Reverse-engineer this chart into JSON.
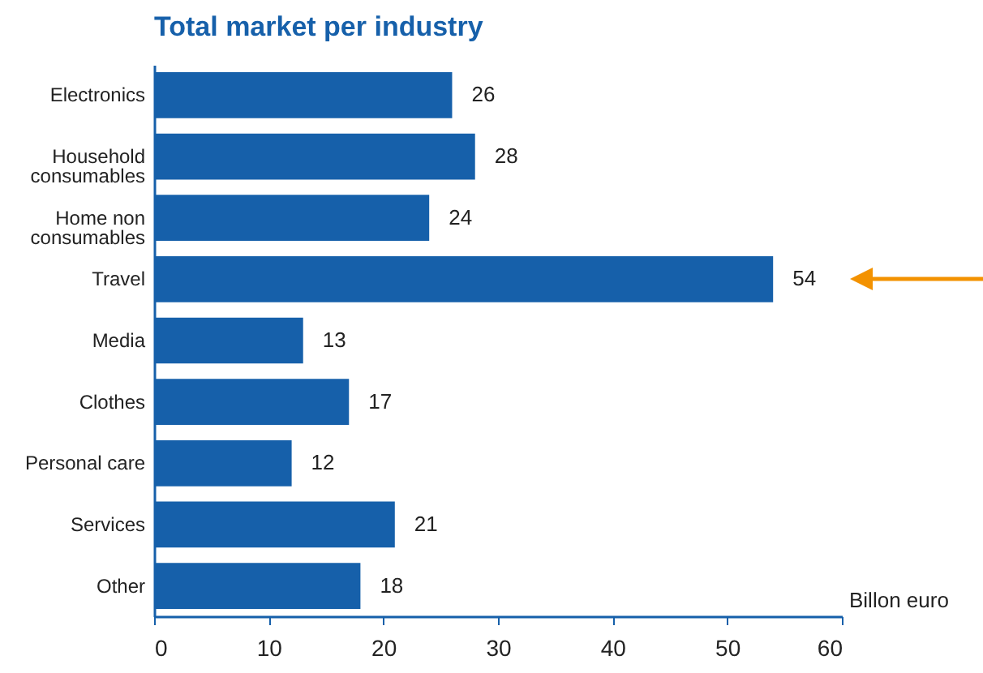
{
  "chart_data": {
    "type": "bar",
    "orientation": "horizontal",
    "title": "Total market per industry",
    "xlabel": "Billon euro",
    "categories": [
      "Electronics",
      "Household\nconsumables",
      "Home non\nconsumables",
      "Travel",
      "Media",
      "Clothes",
      "Personal care",
      "Services",
      "Other"
    ],
    "values": [
      26,
      28,
      24,
      54,
      13,
      17,
      12,
      21,
      18
    ],
    "color": "#1660aa",
    "xlim": [
      0,
      60
    ],
    "xticks": [
      0,
      10,
      20,
      30,
      40,
      50,
      60
    ],
    "grid": false,
    "data_labels": true
  }
}
